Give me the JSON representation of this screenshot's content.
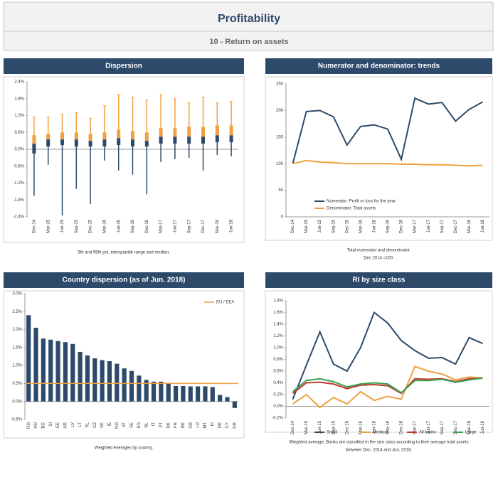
{
  "page": {
    "title": "Profitability",
    "subtitle": "10 - Return on assets"
  },
  "chart_data": [
    {
      "type": "box",
      "title": "Dispersion",
      "caption": [
        "5th and 95th pct, interquartile range and median."
      ],
      "categories": [
        "Dec-14",
        "Mar-15",
        "Jun-15",
        "Sep-15",
        "Dec-15",
        "Mar-16",
        "Jun-16",
        "Sep-16",
        "Dec-16",
        "Mar-17",
        "Jun-17",
        "Sep-17",
        "Dec-17",
        "Mar-18",
        "Jun-18"
      ],
      "p5": [
        -1.65,
        -0.55,
        -2.35,
        -1.4,
        -1.95,
        -0.4,
        -0.75,
        -0.9,
        -1.6,
        -0.45,
        -0.35,
        -0.3,
        -0.75,
        -0.2,
        -0.25
      ],
      "q1": [
        -0.15,
        0.1,
        0.15,
        0.1,
        0.1,
        0.1,
        0.15,
        0.1,
        0.1,
        0.2,
        0.2,
        0.2,
        0.2,
        0.25,
        0.25
      ],
      "median": [
        0.2,
        0.35,
        0.35,
        0.35,
        0.3,
        0.35,
        0.4,
        0.35,
        0.3,
        0.45,
        0.45,
        0.45,
        0.45,
        0.5,
        0.5
      ],
      "q3": [
        0.5,
        0.55,
        0.6,
        0.6,
        0.55,
        0.6,
        0.7,
        0.65,
        0.6,
        0.75,
        0.75,
        0.8,
        0.8,
        0.85,
        0.85
      ],
      "p95": [
        1.15,
        1.15,
        1.25,
        1.3,
        1.1,
        1.55,
        1.95,
        1.85,
        1.75,
        1.95,
        1.8,
        1.65,
        1.85,
        1.65,
        1.7
      ],
      "colors": {
        "low": "#2e4a6b",
        "high": "#f0a040"
      },
      "ylim": [
        -2.4,
        2.4
      ],
      "yticks": [
        {
          "value": -2.4,
          "label": "-2.4%"
        },
        {
          "value": -1.8,
          "label": "-1.8%"
        },
        {
          "value": -1.2,
          "label": "-1.2%"
        },
        {
          "value": -0.6,
          "label": "-0.6%"
        },
        {
          "value": 0,
          "label": "0.0%"
        },
        {
          "value": 0.6,
          "label": "0.6%"
        },
        {
          "value": 1.2,
          "label": "1.2%"
        },
        {
          "value": 1.8,
          "label": "1.8%"
        },
        {
          "value": 2.4,
          "label": "2.4%"
        }
      ]
    },
    {
      "type": "line",
      "title": "Numerator and denominator: trends",
      "caption": [
        "Total numerator and denominator.",
        "Dec 2014 =100."
      ],
      "categories": [
        "Dec-14",
        "Mar-15",
        "Jun-15",
        "Sep-15",
        "Dec-15",
        "Mar-16",
        "Jun-16",
        "Sep-16",
        "Dec-16",
        "Mar-17",
        "Jun-17",
        "Sep-17",
        "Dec-17",
        "Mar-18",
        "Jun-18"
      ],
      "series": [
        {
          "name": "Numerator: Profit or loss for the year",
          "color": "#2e4a6b",
          "values": [
            100,
            198,
            200,
            188,
            135,
            170,
            173,
            165,
            108,
            223,
            212,
            215,
            180,
            202,
            216
          ]
        },
        {
          "name": "Denominator: Total assets",
          "color": "#f0a040",
          "values": [
            100,
            106,
            103,
            102,
            100,
            100,
            100,
            100,
            99,
            99,
            98,
            98,
            97,
            96,
            97
          ]
        }
      ],
      "ylim": [
        0,
        250
      ],
      "yticks": [
        0,
        50,
        100,
        150,
        200,
        250
      ],
      "legend": "lower left"
    },
    {
      "type": "bar",
      "title": "Country dispersion (as of Jun. 2018)",
      "caption": [
        "Weighted Averages by country."
      ],
      "categories": [
        "RO",
        "HU",
        "BG",
        "SI",
        "EE",
        "HR",
        "LV",
        "LT",
        "PL",
        "CZ",
        "SK",
        "IE",
        "NO",
        "AT",
        "SE",
        "ES",
        "NL",
        "IT",
        "PT",
        "DK",
        "FR",
        "BE",
        "GB",
        "LU",
        "MT",
        "FI",
        "DE",
        "CY",
        "GR"
      ],
      "values": [
        2.4,
        2.05,
        1.75,
        1.72,
        1.68,
        1.65,
        1.6,
        1.38,
        1.28,
        1.2,
        1.15,
        1.12,
        1.05,
        0.92,
        0.85,
        0.72,
        0.6,
        0.55,
        0.55,
        0.52,
        0.43,
        0.43,
        0.42,
        0.42,
        0.42,
        0.4,
        0.18,
        0.12,
        -0.18
      ],
      "color": "#2e4a6b",
      "reference": {
        "name": "EU / EEA",
        "value": 0.5,
        "color": "#f0a040"
      },
      "ylim": [
        -0.5,
        3.0
      ],
      "yticks": [
        {
          "value": -0.5,
          "label": "-0.5%"
        },
        {
          "value": 0,
          "label": "0.0%"
        },
        {
          "value": 0.5,
          "label": "0.5%"
        },
        {
          "value": 1,
          "label": "1.0%"
        },
        {
          "value": 1.5,
          "label": "1.5%"
        },
        {
          "value": 2,
          "label": "2.0%"
        },
        {
          "value": 2.5,
          "label": "2.5%"
        },
        {
          "value": 3,
          "label": "3.0%"
        }
      ],
      "legend": "upper right"
    },
    {
      "type": "line",
      "title": "RI by size class",
      "caption": [
        "Weighted average. Banks are classified in the size class according to their average total assets",
        "between Dec. 2014 and Jun. 2018."
      ],
      "categories": [
        "Dec-14",
        "Mar-15",
        "Jun-15",
        "Sep-15",
        "Dec-15",
        "Mar-16",
        "Jun-16",
        "Sep-16",
        "Dec-16",
        "Mar-17",
        "Jun-17",
        "Sep-17",
        "Dec-17",
        "Mar-18",
        "Jun-18"
      ],
      "series": [
        {
          "name": "Small",
          "color": "#2e4a6b",
          "values": [
            0.12,
            0.7,
            1.27,
            0.72,
            0.6,
            1.0,
            1.6,
            1.42,
            1.12,
            0.95,
            0.82,
            0.83,
            0.72,
            1.17,
            1.07
          ]
        },
        {
          "name": "Medium",
          "color": "#f0a040",
          "values": [
            0.04,
            0.2,
            -0.02,
            0.15,
            0.04,
            0.25,
            0.1,
            0.17,
            0.12,
            0.68,
            0.6,
            0.55,
            0.45,
            0.5,
            0.48
          ]
        },
        {
          "name": "All banks",
          "color": "#c0392b",
          "values": [
            0.22,
            0.4,
            0.41,
            0.38,
            0.3,
            0.36,
            0.37,
            0.35,
            0.22,
            0.47,
            0.46,
            0.47,
            0.42,
            0.47,
            0.48
          ]
        },
        {
          "name": "Large",
          "color": "#3aa050",
          "values": [
            0.25,
            0.44,
            0.47,
            0.42,
            0.33,
            0.38,
            0.4,
            0.38,
            0.23,
            0.44,
            0.44,
            0.46,
            0.41,
            0.45,
            0.48
          ]
        }
      ],
      "ylim": [
        -0.2,
        1.8
      ],
      "yticks": [
        {
          "value": -0.2,
          "label": "-0.2%"
        },
        {
          "value": 0,
          "label": "0.0%"
        },
        {
          "value": 0.2,
          "label": "0.2%"
        },
        {
          "value": 0.4,
          "label": "0.4%"
        },
        {
          "value": 0.6,
          "label": "0.6%"
        },
        {
          "value": 0.8,
          "label": "0.8%"
        },
        {
          "value": 1,
          "label": "1.0%"
        },
        {
          "value": 1.2,
          "label": "1.2%"
        },
        {
          "value": 1.4,
          "label": "1.4%"
        },
        {
          "value": 1.6,
          "label": "1.6%"
        },
        {
          "value": 1.8,
          "label": "1.8%"
        }
      ],
      "legend": "bottom"
    }
  ]
}
